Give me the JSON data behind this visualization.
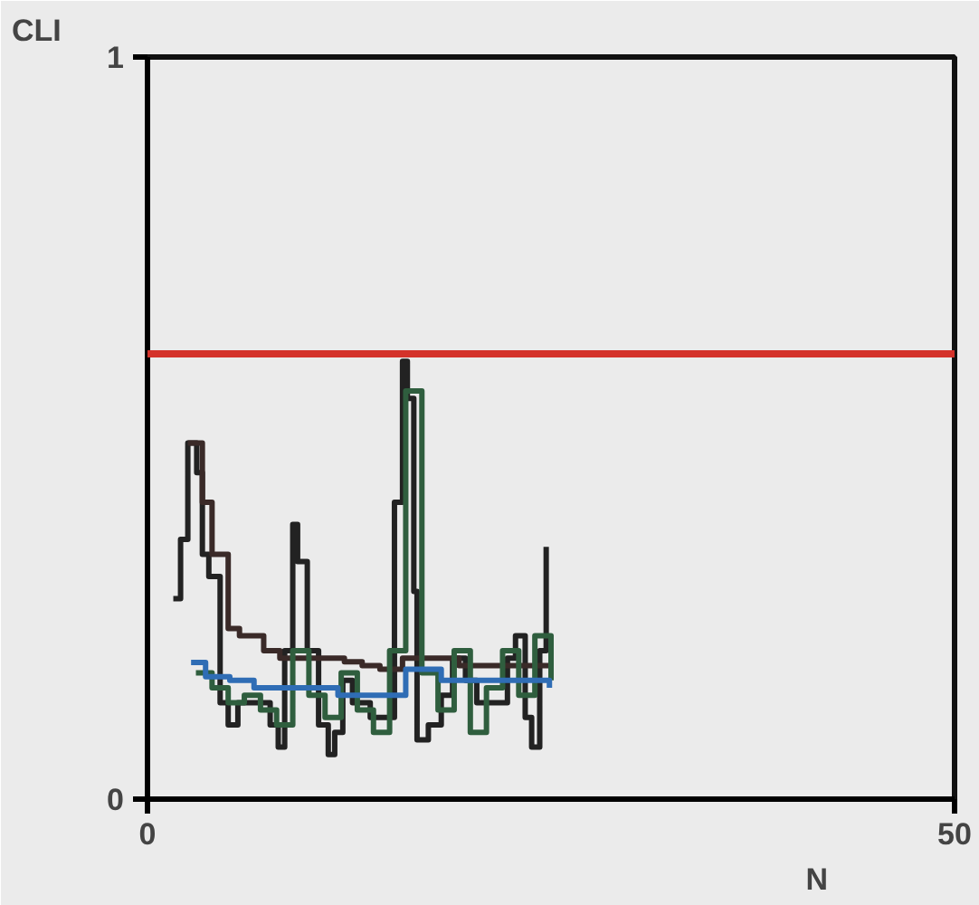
{
  "chart_data": {
    "type": "step",
    "xlabel": "N",
    "ylabel": "CLI",
    "xlim": [
      0,
      50
    ],
    "ylim": [
      0,
      1
    ],
    "xticks": [
      0,
      50
    ],
    "yticks": [
      0,
      1
    ],
    "line_style": "solid",
    "marker": "none",
    "ref_lines": [
      {
        "axis": "y",
        "value": 0.6,
        "color": "#d4322a"
      }
    ],
    "series": [
      {
        "color": "#222222",
        "x": [
          1.6,
          2.05,
          2.5,
          3.05,
          3.4,
          3.8,
          4.5,
          5.0,
          5.6,
          6.5,
          7.6,
          8.1,
          8.5,
          9.0,
          9.3,
          9.9,
          10.6,
          11.2,
          11.6,
          12.1,
          12.7,
          13.8,
          14.9,
          15.3,
          15.8,
          16.1,
          16.5,
          16.7,
          17.4,
          18.2,
          18.9,
          19.7,
          20.4,
          21.5,
          22.3,
          22.8,
          23.4,
          23.8,
          24.3,
          24.7
        ],
        "values": [
          0.27,
          0.35,
          0.48,
          0.44,
          0.33,
          0.3,
          0.13,
          0.1,
          0.13,
          0.13,
          0.1,
          0.07,
          0.2,
          0.37,
          0.32,
          0.2,
          0.1,
          0.06,
          0.09,
          0.16,
          0.13,
          0.11,
          0.11,
          0.4,
          0.59,
          0.54,
          0.28,
          0.08,
          0.1,
          0.14,
          0.19,
          0.16,
          0.13,
          0.13,
          0.19,
          0.22,
          0.11,
          0.07,
          0.2,
          0.34
        ]
      },
      {
        "color": "#3a2a28",
        "x": [
          2.5,
          3.4,
          4.0,
          5.0,
          5.7,
          7.2,
          8.2,
          10.0,
          12.2,
          13.3,
          14.4,
          15.8,
          19.3,
          24.9
        ],
        "values": [
          0.48,
          0.4,
          0.33,
          0.23,
          0.22,
          0.2,
          0.19,
          0.19,
          0.185,
          0.18,
          0.175,
          0.19,
          0.18,
          0.18
        ]
      },
      {
        "color": "#2f5e3e",
        "x": [
          3.0,
          4.0,
          5.0,
          6.0,
          7.0,
          8.0,
          9.0,
          10.0,
          11.0,
          12.0,
          13.0,
          14.0,
          15.0,
          16.0,
          17.0,
          18.0,
          19.0,
          20.0,
          21.0,
          22.0,
          23.0,
          24.0,
          25.0
        ],
        "values": [
          0.17,
          0.15,
          0.13,
          0.14,
          0.12,
          0.1,
          0.2,
          0.14,
          0.11,
          0.17,
          0.12,
          0.09,
          0.2,
          0.55,
          0.17,
          0.12,
          0.2,
          0.09,
          0.15,
          0.2,
          0.14,
          0.22,
          0.16
        ]
      },
      {
        "color": "#2f6db5",
        "x": [
          2.7,
          3.6,
          5.1,
          6.6,
          11.8,
          14.9,
          16.0,
          18.2,
          24.9
        ],
        "values": [
          0.184,
          0.165,
          0.16,
          0.15,
          0.14,
          0.14,
          0.175,
          0.16,
          0.15
        ]
      }
    ]
  }
}
